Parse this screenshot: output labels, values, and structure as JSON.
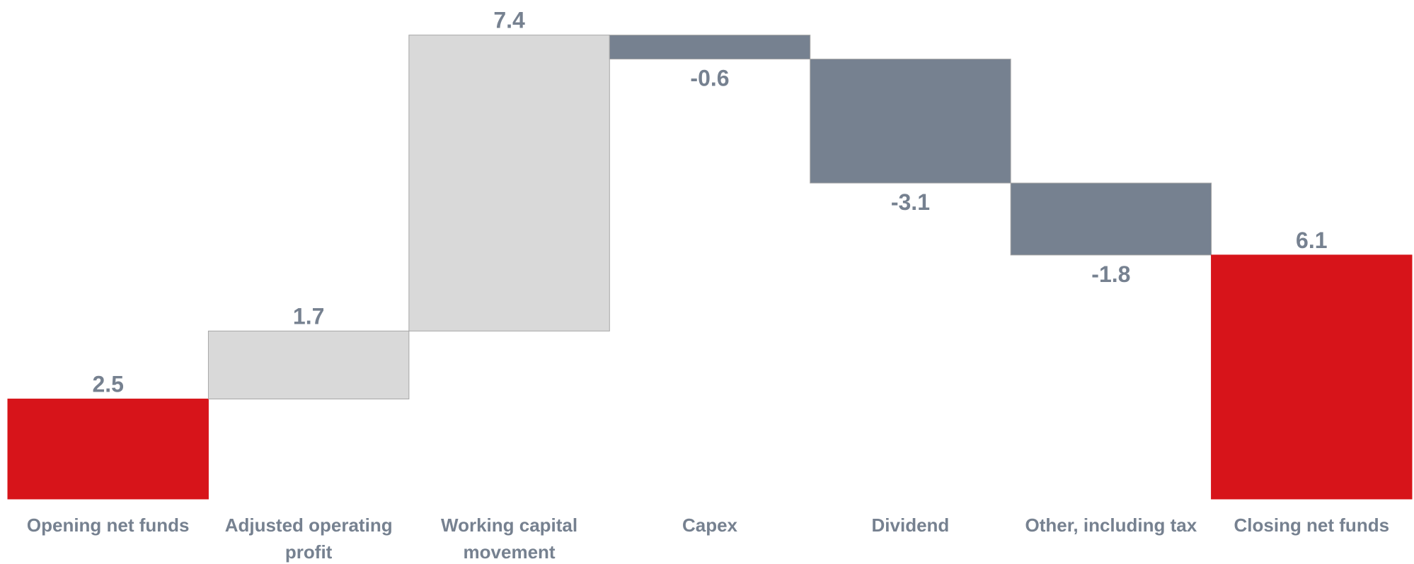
{
  "chart_data": {
    "type": "waterfall",
    "categories": [
      "Opening net funds",
      "Adjusted operating profit",
      "Working capital movement",
      "Capex",
      "Dividend",
      "Other, including tax",
      "Closing net funds"
    ],
    "values": [
      2.5,
      1.7,
      7.4,
      -0.6,
      -3.1,
      -1.8,
      6.1
    ],
    "measure": [
      "absolute",
      "relative",
      "relative",
      "relative",
      "relative",
      "relative",
      "total"
    ],
    "colors": {
      "total": "#d7141a",
      "increase": "#d9d9d9",
      "decrease": "#768190"
    },
    "ylim": [
      0,
      12
    ]
  }
}
